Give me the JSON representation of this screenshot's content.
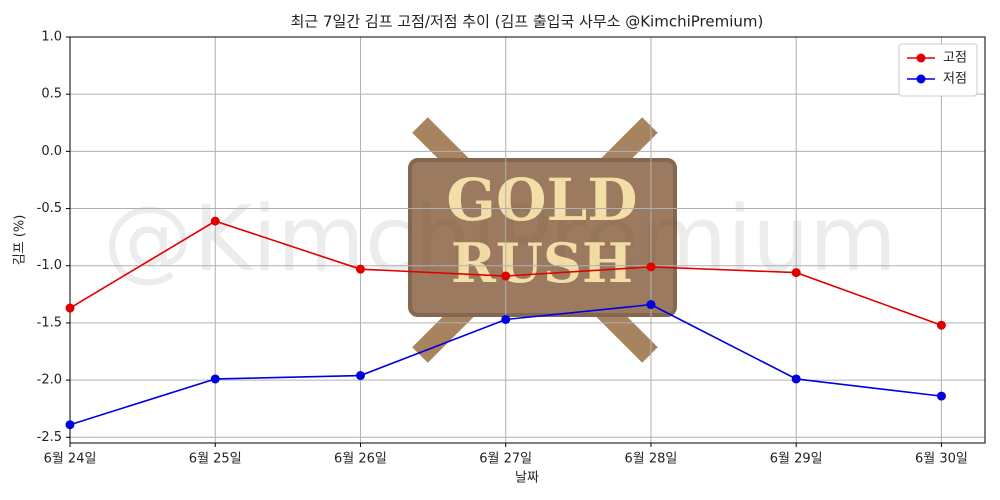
{
  "chart_data": {
    "type": "line",
    "title": "최근 7일간 김프 고점/저점 추이 (김프 출입국 사무소 @KimchiPremium)",
    "x_label": "날짜",
    "y_label": "김프 (%)",
    "watermark": "@KimchiPremium",
    "logo_lines": [
      "GOLD",
      "RUSH"
    ],
    "categories": [
      "6월 24일",
      "6월 25일",
      "6월 26일",
      "6월 27일",
      "6월 28일",
      "6월 29일",
      "6월 30일"
    ],
    "series": [
      {
        "name": "고점",
        "color": "#e00000",
        "values": [
          -1.37,
          -0.61,
          -1.03,
          -1.09,
          -1.01,
          -1.06,
          -1.52
        ]
      },
      {
        "name": "저점",
        "color": "#0000e0",
        "values": [
          -2.39,
          -1.99,
          -1.96,
          -1.47,
          -1.34,
          -1.99,
          -2.14
        ]
      }
    ],
    "ylim": [
      -2.55,
      1.0
    ],
    "yticks": [
      {
        "value": 1.0,
        "label": "1.0"
      },
      0.5,
      {
        "value": 0.0,
        "label": "0.0"
      },
      -0.5,
      {
        "value": -1.0,
        "label": "-1.0"
      },
      -1.5,
      {
        "value": -2.0,
        "label": "-2.0"
      },
      -2.5
    ],
    "grid": true,
    "legend": "upper right"
  }
}
